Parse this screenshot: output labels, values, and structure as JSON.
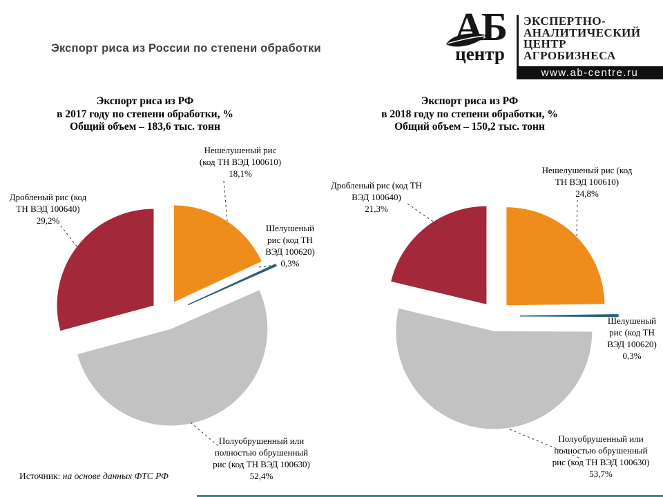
{
  "page_title": "Экспорт риса из России по степени обработки",
  "logo": {
    "acronym": "АБ",
    "sub": "центр",
    "lines": [
      "ЭКСПЕРТНО-",
      "АНАЛИТИЧЕСКИЙ",
      "ЦЕНТР",
      "АГРОБИЗНЕСА"
    ],
    "url": "www.ab-centre.ru"
  },
  "source": {
    "prefix": "Источник:",
    "text": "на основе данных ФТС РФ"
  },
  "colors": {
    "orange": "#EF8D1C",
    "dark_red": "#A2283A",
    "gray": "#C2C2C2",
    "steel_blue": "#2A6076",
    "title_gray": "#404040",
    "footer_teal": "#2E8F8D"
  },
  "chart_data": [
    {
      "type": "pie",
      "year": "2017",
      "title_lines": [
        "Экспорт риса из РФ",
        "в 2017 году по степени обработки, %",
        "Общий  объем – 183,6 тыс. тонн"
      ],
      "total_thousand_tonnes": 183.6,
      "slices": [
        {
          "key": "neshelusheny",
          "label": "Нешелушеный рис (код ТН ВЭД 100610)",
          "value": 18.1,
          "color": "#EF8D1C"
        },
        {
          "key": "shelusheny",
          "label": "Шелушеный рис (код ТН ВЭД 100620)",
          "value": 0.3,
          "color": "#2A6076"
        },
        {
          "key": "poluobrushenny",
          "label": "Полуобрушенный или полностью обрушенный рис (код ТН ВЭД 100630)",
          "value": 52.4,
          "color": "#C2C2C2"
        },
        {
          "key": "drobleny",
          "label": "Дробленый рис (код ТН ВЭД 100640)",
          "value": 29.2,
          "color": "#A2283A"
        }
      ]
    },
    {
      "type": "pie",
      "year": "2018",
      "title_lines": [
        "Экспорт риса из РФ",
        "в 2018 году по степени обработки, %",
        "Общий  объем – 150,2 тыс. тонн"
      ],
      "total_thousand_tonnes": 150.2,
      "slices": [
        {
          "key": "neshelusheny",
          "label": "Нешелушеный рис (код ТН ВЭД 100610)",
          "value": 24.8,
          "color": "#EF8D1C"
        },
        {
          "key": "shelusheny",
          "label": "Шелушеный рис (код ТН ВЭД 100620)",
          "value": 0.3,
          "color": "#2A6076"
        },
        {
          "key": "poluobrushenny",
          "label": "Полуобрушенный или полностью обрушенный рис (код ТН ВЭД 100630)",
          "value": 53.7,
          "color": "#C2C2C2"
        },
        {
          "key": "drobleny",
          "label": "Дробленый рис (код ТН ВЭД 100640)",
          "value": 21.3,
          "color": "#A2283A"
        }
      ]
    }
  ],
  "labels": {
    "left_neshel": [
      "Нешелушеный рис",
      "(код ТН ВЭД 100610)",
      "18,1%"
    ],
    "left_drob": [
      "Дробленый рис (код",
      "ТН ВЭД 100640)",
      "29,2%"
    ],
    "left_shel": [
      "Шелушеный",
      "рис (код ТН",
      "ВЭД 100620)",
      "0,3%"
    ],
    "left_polu": [
      "Полуобрушенный или",
      "полностью обрушенный",
      "рис (код ТН ВЭД 100630)",
      "52,4%"
    ],
    "right_neshel": [
      "Нешелушеный рис (код",
      "ТН ВЭД 100610)",
      "24,8%"
    ],
    "right_drob": [
      "Дробленый рис (код ТН",
      "ВЭД 100640)",
      "21,3%"
    ],
    "right_shel": [
      "Шелушеный",
      "рис (код ТН",
      "ВЭД 100620)",
      "0,3%"
    ],
    "right_polu": [
      "Полуобрушенный или",
      "полностью обрушенный",
      "рис (код ТН ВЭД 100630)",
      "53,7%"
    ]
  }
}
